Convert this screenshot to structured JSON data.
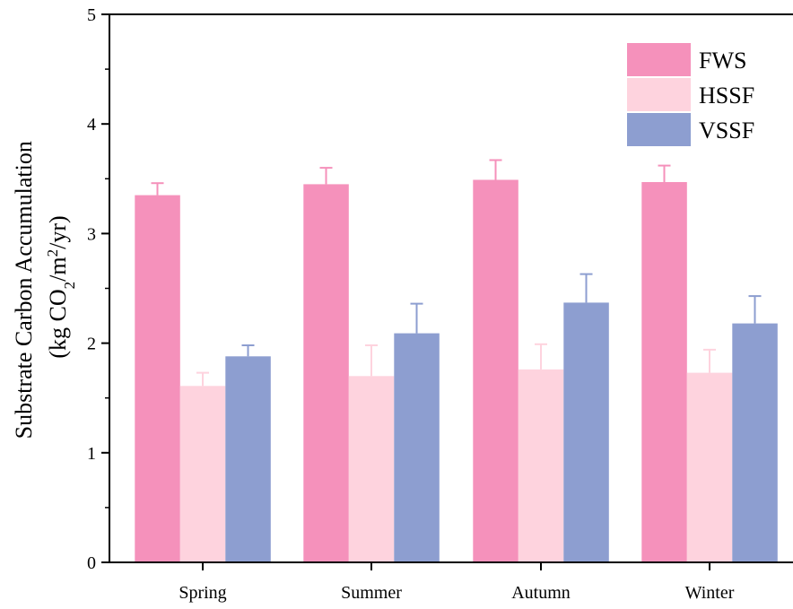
{
  "chart_data": {
    "type": "bar",
    "title": "",
    "xlabel": "",
    "ylabel_line1": "Substrate Carbon Accumulation",
    "ylabel_line2_prefix": "(kg CO",
    "ylabel_line2_sub": "2",
    "ylabel_line2_mid": "/m",
    "ylabel_line2_sup": "2",
    "ylabel_line2_suffix": "/yr)",
    "ylim": [
      0,
      5
    ],
    "yticks": [
      "0",
      "1",
      "2",
      "3",
      "4",
      "5"
    ],
    "categories": [
      "Spring",
      "Summer",
      "Autumn",
      "Winter"
    ],
    "series": [
      {
        "name": "FWS",
        "color": "#f591bb",
        "values": [
          3.35,
          3.45,
          3.49,
          3.47
        ],
        "errors": [
          0.11,
          0.15,
          0.18,
          0.15
        ]
      },
      {
        "name": "HSSF",
        "color": "#fed3de",
        "values": [
          1.61,
          1.7,
          1.76,
          1.73
        ],
        "errors": [
          0.12,
          0.28,
          0.23,
          0.21
        ]
      },
      {
        "name": "VSSF",
        "color": "#8d9ed0",
        "values": [
          1.88,
          2.09,
          2.37,
          2.18
        ],
        "errors": [
          0.1,
          0.27,
          0.26,
          0.25
        ]
      }
    ],
    "legend_position": "top-right",
    "grid": false
  }
}
